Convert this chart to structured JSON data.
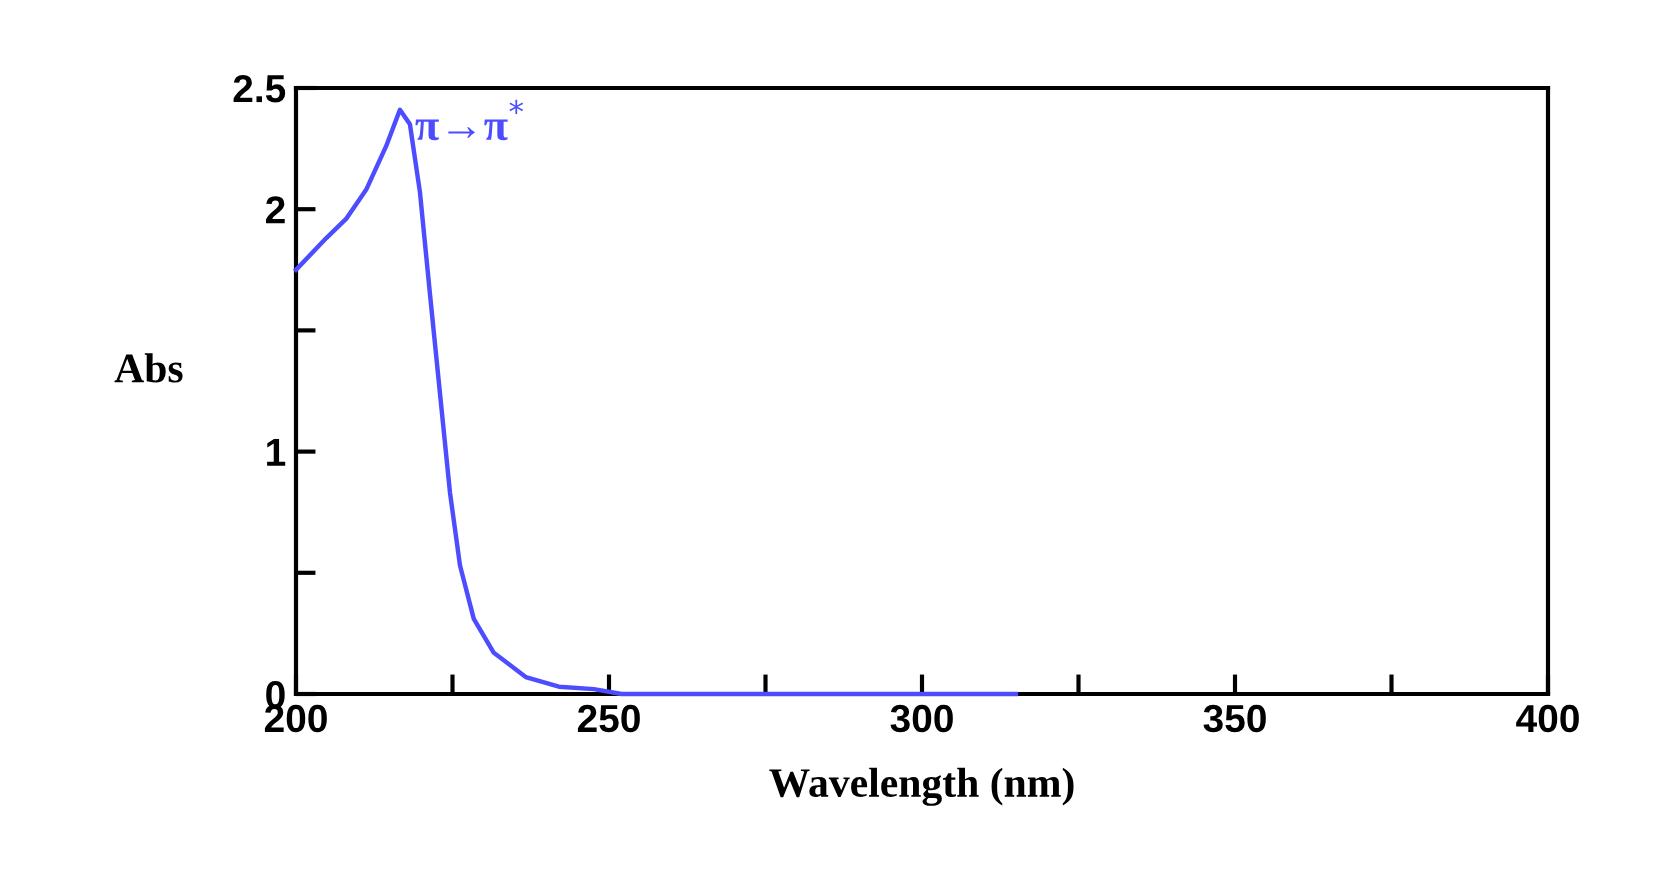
{
  "chart_data": {
    "type": "line",
    "xlabel": "Wavelength (nm)",
    "ylabel": "Abs",
    "x": [
      200,
      204.8,
      208,
      211.2,
      214.4,
      216.6,
      218.2,
      219.8,
      221.4,
      223,
      224.6,
      226.2,
      228.4,
      231.6,
      236.7,
      242,
      247.6,
      252,
      275,
      300,
      315
    ],
    "series": [
      {
        "color": "#4d4dff",
        "values": [
          1.75,
          1.88,
          1.96,
          2.08,
          2.26,
          2.41,
          2.35,
          2.07,
          1.65,
          1.24,
          0.83,
          0.53,
          0.31,
          0.17,
          0.07,
          0.03,
          0.02,
          0,
          0,
          0,
          0
        ]
      }
    ],
    "xlim": [
      200,
      400
    ],
    "xticks": [
      200,
      {
        "value": 225,
        "label": null
      },
      250,
      {
        "value": 275,
        "label": null
      },
      300,
      {
        "value": 325,
        "label": null
      },
      350,
      {
        "value": 375,
        "label": null
      },
      400
    ],
    "ylim": [
      0,
      2.5
    ],
    "yticks": [
      0,
      {
        "value": 0.5,
        "label": null
      },
      1,
      {
        "value": 1.5,
        "label": null
      },
      2,
      2.5
    ],
    "grid": false,
    "legend": false,
    "marker": "none",
    "line_style": "solid",
    "annotations": [
      {
        "text": "π→π$^{*}$",
        "x": 219,
        "y": 2.33
      }
    ]
  }
}
